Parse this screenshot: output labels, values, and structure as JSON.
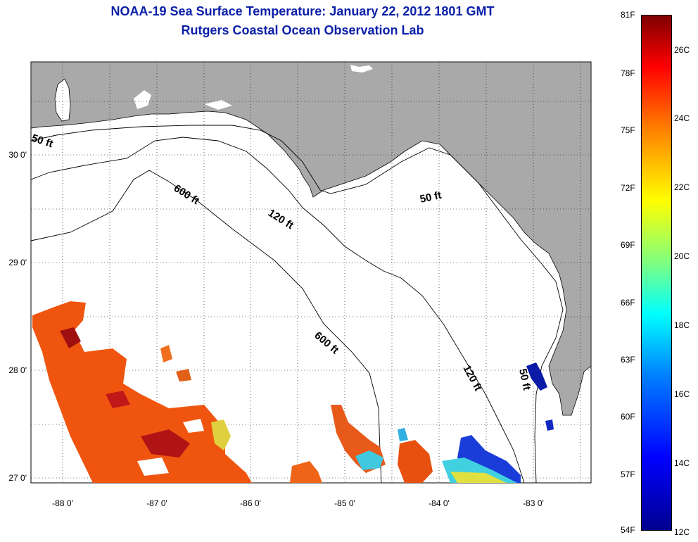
{
  "title": {
    "line1": "NOAA-19 Sea Surface Temperature:  January 22, 2012 1801 GMT",
    "line2": "Rutgers Coastal Ocean Observation Lab"
  },
  "map": {
    "lat_labels": [
      "30 0'",
      "29 0'",
      "28 0'",
      "27 0'"
    ],
    "lon_labels": [
      "-88 0'",
      "-87 0'",
      "-86 0'",
      "-85 0'",
      "-84 0'",
      "-83 0'"
    ],
    "contour_labels": {
      "c50_west": "50 ft",
      "c600_upper": "600 ft",
      "c120_upper": "120 ft",
      "c50_east": "50 ft",
      "c600_lower": "600 ft",
      "c120_lower": "120 ft",
      "c50_lower": "50 ft"
    },
    "land_color": "#a9a9a9"
  },
  "colorbar": {
    "f_labels": [
      "81F",
      "78F",
      "75F",
      "72F",
      "69F",
      "66F",
      "63F",
      "60F",
      "57F",
      "54F"
    ],
    "c_labels": [
      "26C",
      "24C",
      "22C",
      "20C",
      "18C",
      "16C",
      "14C",
      "12C"
    ],
    "colors": [
      "#7f0000",
      "#ff0000",
      "#ff7f00",
      "#ffff00",
      "#7fff7f",
      "#00ffff",
      "#007fff",
      "#0000ff",
      "#00008f"
    ]
  }
}
